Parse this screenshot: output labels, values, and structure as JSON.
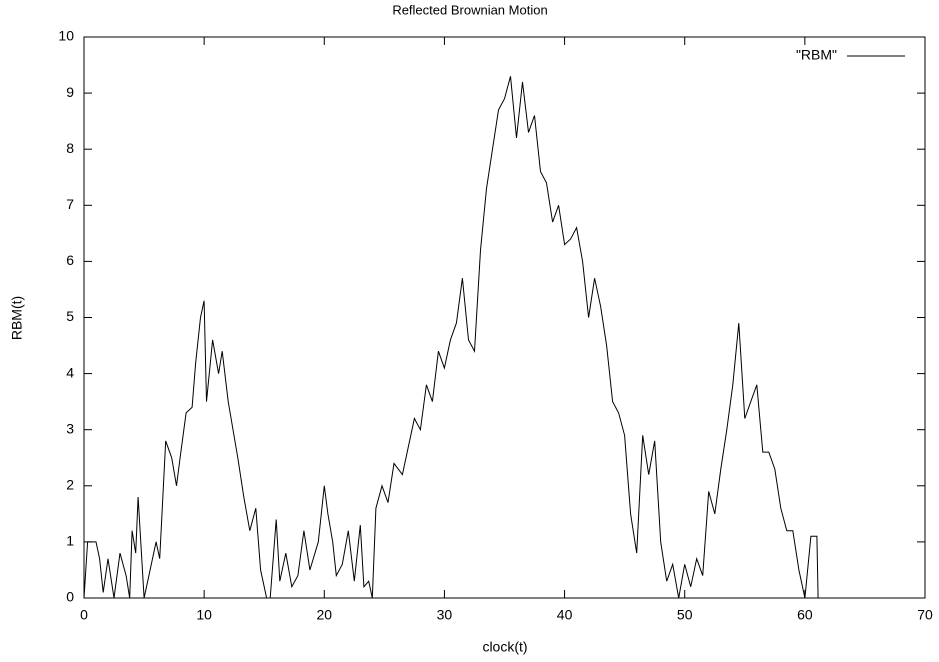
{
  "chart_data": {
    "type": "line",
    "title": "Reflected Brownian Motion",
    "xlabel": "clock(t)",
    "ylabel": "RBM(t)",
    "legend": "top-right",
    "xlim": [
      0,
      70
    ],
    "xticks": [
      0,
      10,
      20,
      30,
      40,
      50,
      60,
      70
    ],
    "ylim": [
      0,
      10
    ],
    "yticks": [
      0,
      1,
      2,
      3,
      4,
      5,
      6,
      7,
      8,
      9,
      10
    ],
    "grid": false,
    "x": [
      0,
      0.3,
      1,
      1.3,
      1.6,
      2,
      2.5,
      3,
      3.5,
      3.8,
      4,
      4.3,
      4.5,
      5,
      5.5,
      6,
      6.3,
      6.8,
      7.3,
      7.7,
      8,
      8.5,
      9,
      9.3,
      9.7,
      10,
      10.2,
      10.7,
      11.2,
      11.5,
      12,
      12.8,
      13.3,
      13.8,
      14.3,
      14.7,
      15.2,
      15.5,
      16,
      16.3,
      16.8,
      17.3,
      17.8,
      18.3,
      18.8,
      19.5,
      20,
      20.3,
      20.7,
      21,
      21.5,
      22,
      22.5,
      23,
      23.3,
      23.7,
      24,
      24.3,
      24.8,
      25.3,
      25.8,
      26.5,
      27,
      27.5,
      28,
      28.5,
      29,
      29.5,
      30,
      30.5,
      31,
      31.5,
      32,
      32.5,
      33,
      33.5,
      34,
      34.5,
      35,
      35.5,
      36,
      36.5,
      37,
      37.5,
      38,
      38.5,
      39,
      39.5,
      40,
      40.5,
      41,
      41.5,
      42,
      42.5,
      43,
      43.5,
      44,
      44.5,
      45,
      45.5,
      46,
      46.5,
      47,
      47.5,
      48,
      48.5,
      49,
      49.5,
      50,
      50.5,
      51,
      51.5,
      52,
      52.5,
      53,
      53.5,
      54,
      54.5,
      55,
      55.5,
      56,
      56.5,
      57,
      57.5,
      58,
      58.5,
      59,
      59.5,
      60,
      60.5,
      61,
      61.1
    ],
    "series": [
      {
        "name": "\"RBM\"",
        "color": "#000000",
        "values": [
          0,
          1,
          1,
          0.7,
          0.1,
          0.7,
          0,
          0.8,
          0.4,
          0,
          1.2,
          0.8,
          1.8,
          0,
          0.5,
          1,
          0.7,
          2.8,
          2.5,
          2.0,
          2.5,
          3.3,
          3.4,
          4.2,
          5,
          5.3,
          3.5,
          4.6,
          4.0,
          4.4,
          3.5,
          2.5,
          1.8,
          1.2,
          1.6,
          0.5,
          0,
          0,
          1.4,
          0.3,
          0.8,
          0.2,
          0.4,
          1.2,
          0.5,
          1.0,
          2.0,
          1.5,
          1.0,
          0.4,
          0.6,
          1.2,
          0.3,
          1.3,
          0.2,
          0.3,
          0,
          1.6,
          2.0,
          1.7,
          2.4,
          2.2,
          2.7,
          3.2,
          3.0,
          3.8,
          3.5,
          4.4,
          4.1,
          4.6,
          4.9,
          5.7,
          4.6,
          4.4,
          6.2,
          7.3,
          8.0,
          8.7,
          8.9,
          9.3,
          8.2,
          9.2,
          8.3,
          8.6,
          7.6,
          7.4,
          6.7,
          7.0,
          6.3,
          6.4,
          6.6,
          6.0,
          5.0,
          5.7,
          5.2,
          4.5,
          3.5,
          3.3,
          2.9,
          1.5,
          0.8,
          2.9,
          2.2,
          2.8,
          1.0,
          0.3,
          0.6,
          0,
          0.6,
          0.2,
          0.7,
          0.4,
          1.9,
          1.5,
          2.3,
          3.0,
          3.8,
          4.9,
          3.2,
          3.5,
          3.8,
          2.6,
          2.6,
          2.3,
          1.6,
          1.2,
          1.2,
          0.5,
          0,
          1.1,
          1.1,
          0
        ]
      }
    ]
  }
}
